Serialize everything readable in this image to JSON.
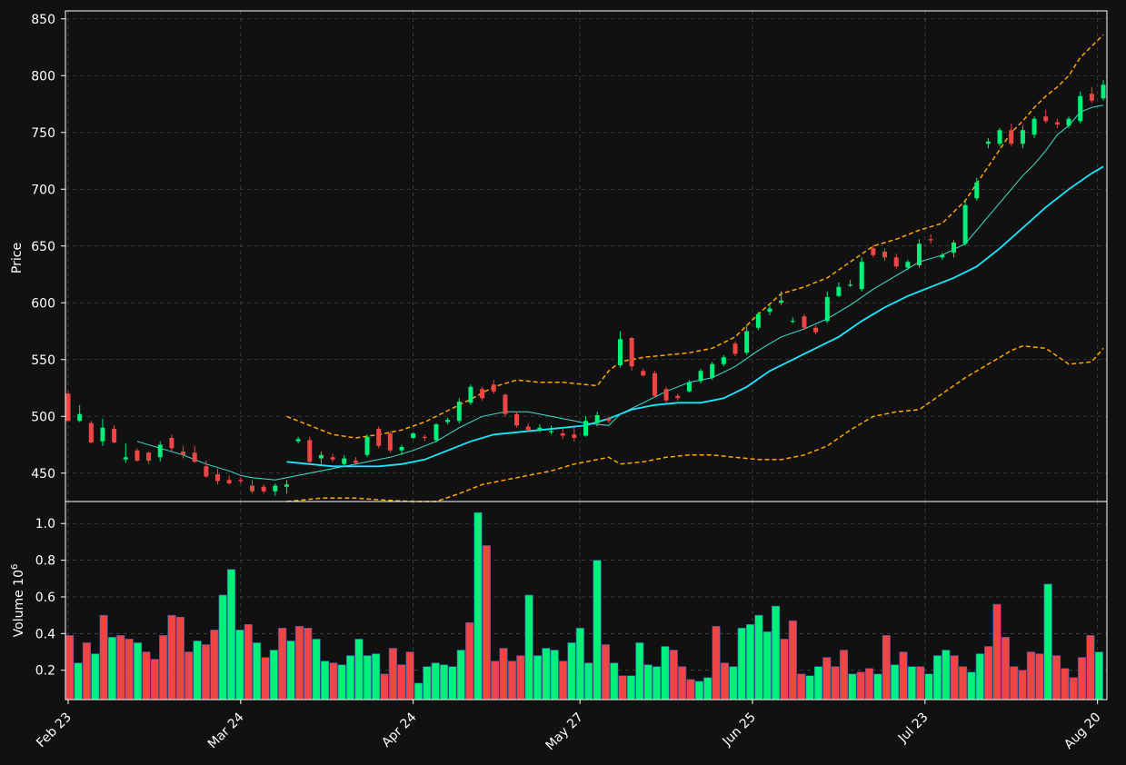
{
  "chart_data": {
    "type": "candlestick",
    "colors": {
      "background": "#111111",
      "up": "#00f07a",
      "down": "#f04545",
      "ma_fast": "#40e0d0",
      "ma_slow": "#18e8ff",
      "band": "#ffa500",
      "grid": "#444444",
      "axis": "#ffffff"
    },
    "price_panel": {
      "ylabel": "Price",
      "ylim": [
        425,
        857
      ],
      "yticks": [
        450,
        500,
        550,
        600,
        650,
        700,
        750,
        800,
        850
      ]
    },
    "volume_panel": {
      "ylabel": "Volume",
      "ylabel_exponent": "10",
      "ylabel_exponent_power": "6",
      "ylim": [
        0.04,
        1.12
      ],
      "yticks": [
        0.2,
        0.4,
        0.6,
        0.8,
        1.0
      ],
      "ytick_labels": [
        "0.2",
        "0.4",
        "0.6",
        "0.8",
        "1.0"
      ]
    },
    "xticks": [
      {
        "index": 0,
        "label": "Feb 23"
      },
      {
        "index": 30,
        "label": "Mar 24"
      },
      {
        "index": 60,
        "label": "Apr 24"
      },
      {
        "index": 89,
        "label": "May 27"
      },
      {
        "index": 119,
        "label": "Jun 25"
      },
      {
        "index": 149,
        "label": "Jul 23"
      },
      {
        "index": 179,
        "label": "Aug 20"
      }
    ],
    "x_count": 181,
    "candles": [
      [
        0,
        520,
        522,
        495,
        496
      ],
      [
        2,
        496,
        510,
        495,
        502
      ],
      [
        4,
        494,
        496,
        476,
        477
      ],
      [
        6,
        478,
        498,
        474,
        490
      ],
      [
        8,
        489,
        492,
        476,
        477
      ],
      [
        10,
        462,
        476,
        459,
        464
      ],
      [
        12,
        470,
        472,
        460,
        461
      ],
      [
        14,
        468,
        469,
        458,
        461
      ],
      [
        16,
        464,
        478,
        460,
        475
      ],
      [
        18,
        481,
        484,
        469,
        472
      ],
      [
        20,
        469,
        474,
        463,
        466
      ],
      [
        22,
        468,
        474,
        459,
        460
      ],
      [
        24,
        456,
        461,
        446,
        447
      ],
      [
        26,
        449,
        454,
        440,
        443
      ],
      [
        28,
        444,
        448,
        440,
        441
      ],
      [
        30,
        444,
        446,
        441,
        443
      ],
      [
        32,
        439,
        444,
        432,
        434
      ],
      [
        34,
        438,
        440,
        432,
        434
      ],
      [
        36,
        434,
        441,
        430,
        439
      ],
      [
        38,
        438,
        444,
        432,
        440
      ],
      [
        40,
        478,
        482,
        476,
        480
      ],
      [
        42,
        479,
        482,
        458,
        460
      ],
      [
        44,
        463,
        469,
        458,
        466
      ],
      [
        46,
        464,
        467,
        460,
        462
      ],
      [
        48,
        458,
        466,
        456,
        463
      ],
      [
        50,
        461,
        464,
        457,
        459
      ],
      [
        52,
        466,
        484,
        464,
        482
      ],
      [
        54,
        489,
        491,
        472,
        474
      ],
      [
        56,
        485,
        487,
        468,
        470
      ],
      [
        58,
        470,
        475,
        466,
        473
      ],
      [
        60,
        481,
        486,
        480,
        485
      ],
      [
        62,
        482,
        484,
        478,
        481
      ],
      [
        64,
        479,
        494,
        477,
        493
      ],
      [
        66,
        495,
        499,
        493,
        497
      ],
      [
        68,
        496,
        516,
        494,
        513
      ],
      [
        70,
        512,
        528,
        510,
        526
      ],
      [
        72,
        524,
        526,
        514,
        516
      ],
      [
        74,
        528,
        532,
        520,
        522
      ],
      [
        76,
        519,
        520,
        500,
        502
      ],
      [
        78,
        502,
        504,
        490,
        492
      ],
      [
        80,
        491,
        494,
        486,
        488
      ],
      [
        82,
        488,
        493,
        486,
        490
      ],
      [
        84,
        486,
        492,
        484,
        487
      ],
      [
        86,
        485,
        490,
        480,
        483
      ],
      [
        88,
        484,
        490,
        478,
        481
      ],
      [
        90,
        483,
        500,
        482,
        496
      ],
      [
        92,
        494,
        504,
        491,
        501
      ],
      [
        94,
        498,
        500,
        494,
        496
      ],
      [
        96,
        545,
        575,
        543,
        568
      ],
      [
        98,
        569,
        570,
        540,
        544
      ],
      [
        100,
        540,
        542,
        535,
        536
      ],
      [
        102,
        538,
        540,
        517,
        518
      ],
      [
        104,
        524,
        526,
        512,
        514
      ],
      [
        106,
        518,
        520,
        514,
        516
      ],
      [
        108,
        522,
        532,
        521,
        530
      ],
      [
        110,
        531,
        542,
        529,
        540
      ],
      [
        112,
        534,
        548,
        532,
        546
      ],
      [
        114,
        546,
        554,
        544,
        552
      ],
      [
        116,
        564,
        566,
        553,
        555
      ],
      [
        118,
        556,
        580,
        554,
        575
      ],
      [
        120,
        578,
        592,
        576,
        590
      ],
      [
        122,
        592,
        598,
        589,
        595
      ],
      [
        124,
        600,
        610,
        598,
        602
      ],
      [
        126,
        584,
        587,
        582,
        584
      ],
      [
        128,
        588,
        590,
        576,
        578
      ],
      [
        130,
        578,
        580,
        572,
        574
      ],
      [
        132,
        584,
        610,
        582,
        605
      ],
      [
        134,
        606,
        618,
        605,
        614
      ],
      [
        136,
        615,
        620,
        614,
        616
      ],
      [
        138,
        612,
        640,
        610,
        636
      ],
      [
        140,
        648,
        651,
        640,
        642
      ],
      [
        142,
        645,
        648,
        637,
        640
      ],
      [
        144,
        640,
        643,
        630,
        632
      ],
      [
        146,
        631,
        638,
        629,
        636
      ],
      [
        148,
        633,
        656,
        631,
        652
      ],
      [
        150,
        656,
        660,
        652,
        655
      ],
      [
        152,
        640,
        644,
        638,
        642
      ],
      [
        154,
        644,
        655,
        640,
        653
      ],
      [
        156,
        652,
        690,
        650,
        686
      ],
      [
        158,
        692,
        710,
        690,
        706
      ],
      [
        160,
        740,
        745,
        736,
        742
      ],
      [
        162,
        740,
        754,
        738,
        752
      ],
      [
        164,
        752,
        758,
        738,
        740
      ],
      [
        166,
        740,
        756,
        736,
        752
      ],
      [
        168,
        748,
        764,
        745,
        762
      ],
      [
        170,
        764,
        770,
        758,
        760
      ],
      [
        172,
        759,
        762,
        754,
        757
      ],
      [
        174,
        756,
        764,
        754,
        762
      ],
      [
        176,
        760,
        786,
        758,
        782
      ],
      [
        178,
        784,
        790,
        776,
        778
      ],
      [
        180,
        780,
        796,
        778,
        792
      ]
    ],
    "volume": [
      0.39,
      0.24,
      0.35,
      0.29,
      0.5,
      0.38,
      0.39,
      0.37,
      0.35,
      0.3,
      0.26,
      0.39,
      0.5,
      0.49,
      0.3,
      0.36,
      0.34,
      0.42,
      0.61,
      0.75,
      0.42,
      0.45,
      0.35,
      0.27,
      0.31,
      0.43,
      0.36,
      0.44,
      0.43,
      0.37,
      0.25,
      0.24,
      0.23,
      0.28,
      0.37,
      0.28,
      0.29,
      0.18,
      0.32,
      0.23,
      0.3,
      0.13,
      0.22,
      0.24,
      0.23,
      0.22,
      0.31,
      0.46,
      1.06,
      0.88,
      0.25,
      0.32,
      0.25,
      0.28,
      0.61,
      0.28,
      0.32,
      0.31,
      0.25,
      0.35,
      0.43,
      0.24,
      0.8,
      0.34,
      0.24,
      0.17,
      0.17,
      0.35,
      0.23,
      0.22,
      0.33,
      0.31,
      0.22,
      0.15,
      0.14,
      0.16,
      0.44,
      0.24,
      0.22,
      0.43,
      0.45,
      0.5,
      0.41,
      0.55,
      0.37,
      0.47,
      0.18,
      0.17,
      0.22,
      0.27,
      0.22,
      0.31,
      0.18,
      0.19,
      0.21,
      0.18,
      0.39,
      0.23,
      0.3,
      0.22,
      0.22,
      0.18,
      0.28,
      0.31,
      0.28,
      0.22,
      0.19,
      0.29,
      0.33,
      0.56,
      0.38,
      0.22,
      0.2,
      0.3,
      0.29,
      0.67,
      0.28,
      0.21,
      0.16,
      0.27,
      0.39,
      0.3
    ],
    "volume_up": [
      false,
      true,
      false,
      true,
      false,
      true,
      false,
      false,
      true,
      false,
      false,
      false,
      false,
      false,
      false,
      true,
      false,
      false,
      true,
      true,
      true,
      false,
      true,
      false,
      true,
      false,
      true,
      false,
      false,
      true,
      true,
      false,
      true,
      true,
      true,
      true,
      true,
      false,
      false,
      false,
      false,
      true,
      true,
      true,
      true,
      true,
      true,
      false,
      true,
      false,
      false,
      false,
      false,
      false,
      true,
      true,
      true,
      true,
      false,
      true,
      true,
      true,
      true,
      false,
      true,
      false,
      true,
      true,
      true,
      true,
      true,
      false,
      false,
      false,
      true,
      true,
      false,
      false,
      true,
      true,
      true,
      true,
      true,
      true,
      false,
      false,
      false,
      true,
      true,
      false,
      false,
      false,
      true,
      false,
      false,
      true,
      false,
      true,
      false,
      true,
      false,
      true,
      true,
      true,
      false,
      false,
      true,
      true,
      false,
      false,
      false,
      false,
      false,
      false,
      false,
      true,
      false,
      false,
      false,
      false,
      false,
      true
    ],
    "ma_fast": [
      [
        12,
        478
      ],
      [
        16,
        472
      ],
      [
        20,
        466
      ],
      [
        24,
        458
      ],
      [
        28,
        452
      ],
      [
        30,
        448
      ],
      [
        32,
        446
      ],
      [
        34,
        445
      ],
      [
        36,
        444
      ],
      [
        38,
        446
      ],
      [
        40,
        448
      ],
      [
        44,
        452
      ],
      [
        48,
        456
      ],
      [
        52,
        460
      ],
      [
        56,
        464
      ],
      [
        60,
        470
      ],
      [
        64,
        478
      ],
      [
        68,
        490
      ],
      [
        72,
        500
      ],
      [
        76,
        504
      ],
      [
        80,
        504
      ],
      [
        84,
        500
      ],
      [
        88,
        496
      ],
      [
        90,
        494
      ],
      [
        92,
        493
      ],
      [
        94,
        492
      ],
      [
        96,
        502
      ],
      [
        100,
        512
      ],
      [
        104,
        522
      ],
      [
        108,
        530
      ],
      [
        112,
        534
      ],
      [
        116,
        544
      ],
      [
        120,
        558
      ],
      [
        124,
        570
      ],
      [
        128,
        577
      ],
      [
        132,
        586
      ],
      [
        136,
        598
      ],
      [
        140,
        612
      ],
      [
        144,
        624
      ],
      [
        148,
        636
      ],
      [
        152,
        642
      ],
      [
        156,
        652
      ],
      [
        160,
        676
      ],
      [
        164,
        700
      ],
      [
        166,
        712
      ],
      [
        168,
        722
      ],
      [
        170,
        734
      ],
      [
        172,
        748
      ],
      [
        174,
        756
      ],
      [
        176,
        768
      ],
      [
        178,
        772
      ],
      [
        180,
        774
      ]
    ],
    "ma_slow": [
      [
        38,
        460
      ],
      [
        42,
        458
      ],
      [
        46,
        456
      ],
      [
        50,
        456
      ],
      [
        54,
        456
      ],
      [
        58,
        458
      ],
      [
        62,
        462
      ],
      [
        66,
        470
      ],
      [
        70,
        478
      ],
      [
        74,
        484
      ],
      [
        78,
        486
      ],
      [
        82,
        488
      ],
      [
        86,
        490
      ],
      [
        90,
        492
      ],
      [
        94,
        498
      ],
      [
        98,
        506
      ],
      [
        102,
        510
      ],
      [
        106,
        512
      ],
      [
        110,
        512
      ],
      [
        114,
        516
      ],
      [
        118,
        526
      ],
      [
        122,
        540
      ],
      [
        126,
        550
      ],
      [
        130,
        560
      ],
      [
        134,
        570
      ],
      [
        138,
        584
      ],
      [
        142,
        596
      ],
      [
        146,
        606
      ],
      [
        150,
        614
      ],
      [
        154,
        622
      ],
      [
        158,
        632
      ],
      [
        162,
        648
      ],
      [
        166,
        666
      ],
      [
        170,
        684
      ],
      [
        174,
        700
      ],
      [
        178,
        714
      ],
      [
        180,
        720
      ]
    ],
    "band_upper": [
      [
        38,
        500
      ],
      [
        42,
        492
      ],
      [
        46,
        484
      ],
      [
        50,
        481
      ],
      [
        54,
        484
      ],
      [
        58,
        488
      ],
      [
        62,
        495
      ],
      [
        66,
        505
      ],
      [
        70,
        515
      ],
      [
        74,
        526
      ],
      [
        78,
        532
      ],
      [
        82,
        530
      ],
      [
        86,
        530
      ],
      [
        90,
        528
      ],
      [
        92,
        527
      ],
      [
        94,
        540
      ],
      [
        96,
        548
      ],
      [
        100,
        552
      ],
      [
        104,
        554
      ],
      [
        108,
        556
      ],
      [
        112,
        560
      ],
      [
        116,
        570
      ],
      [
        120,
        590
      ],
      [
        124,
        608
      ],
      [
        128,
        614
      ],
      [
        132,
        622
      ],
      [
        136,
        636
      ],
      [
        140,
        650
      ],
      [
        144,
        656
      ],
      [
        148,
        664
      ],
      [
        152,
        670
      ],
      [
        156,
        690
      ],
      [
        160,
        720
      ],
      [
        164,
        750
      ],
      [
        166,
        760
      ],
      [
        168,
        772
      ],
      [
        170,
        782
      ],
      [
        172,
        790
      ],
      [
        174,
        800
      ],
      [
        176,
        816
      ],
      [
        178,
        826
      ],
      [
        180,
        836
      ]
    ],
    "band_lower": [
      [
        38,
        424
      ],
      [
        44,
        428
      ],
      [
        50,
        428
      ],
      [
        56,
        426
      ],
      [
        60,
        424
      ],
      [
        64,
        425
      ],
      [
        68,
        432
      ],
      [
        72,
        440
      ],
      [
        76,
        444
      ],
      [
        80,
        448
      ],
      [
        84,
        452
      ],
      [
        88,
        458
      ],
      [
        92,
        462
      ],
      [
        94,
        464
      ],
      [
        96,
        458
      ],
      [
        100,
        460
      ],
      [
        104,
        464
      ],
      [
        108,
        466
      ],
      [
        112,
        466
      ],
      [
        116,
        464
      ],
      [
        120,
        462
      ],
      [
        124,
        462
      ],
      [
        126,
        464
      ],
      [
        128,
        466
      ],
      [
        132,
        474
      ],
      [
        136,
        488
      ],
      [
        140,
        500
      ],
      [
        144,
        504
      ],
      [
        148,
        506
      ],
      [
        152,
        520
      ],
      [
        156,
        534
      ],
      [
        160,
        546
      ],
      [
        164,
        558
      ],
      [
        166,
        562
      ],
      [
        170,
        560
      ],
      [
        174,
        546
      ],
      [
        178,
        548
      ],
      [
        180,
        560
      ]
    ]
  }
}
